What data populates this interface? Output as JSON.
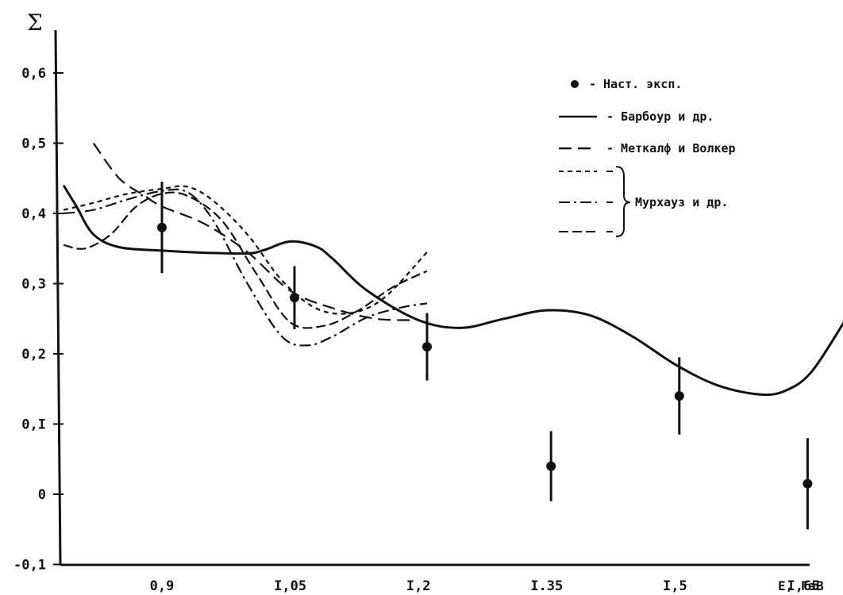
{
  "chart_data": {
    "type": "line",
    "ylabel": "Σ",
    "xlabel": "E, ГэВ",
    "xlim": [
      0.78,
      1.77
    ],
    "ylim": [
      -0.1,
      0.65
    ],
    "x_ticks": [
      0.9,
      1.05,
      1.2,
      1.35,
      1.5,
      1.65
    ],
    "x_tick_labels": [
      "0,9",
      "I,05",
      "I,2",
      "I.35",
      "I,5",
      "I,65"
    ],
    "y_ticks": [
      -0.1,
      0,
      0.1,
      0.2,
      0.3,
      0.4,
      0.5,
      0.6
    ],
    "y_tick_labels": [
      "-0,1",
      "0",
      "0,I",
      "0,2",
      "0,3",
      "0,4",
      "0,5",
      "0,6"
    ],
    "grid": false,
    "legend_position": "top-right",
    "experiment": {
      "name": "Наст. эксп.",
      "points": [
        {
          "x": 0.9,
          "y": 0.38,
          "err": 0.065
        },
        {
          "x": 1.055,
          "y": 0.28,
          "err": 0.045
        },
        {
          "x": 1.21,
          "y": 0.21,
          "err": 0.048
        },
        {
          "x": 1.355,
          "y": 0.04,
          "err": 0.05
        },
        {
          "x": 1.505,
          "y": 0.14,
          "err": 0.055
        },
        {
          "x": 1.655,
          "y": 0.015,
          "err": 0.065
        }
      ]
    },
    "series": [
      {
        "name": "Барбоур и др.",
        "dash": "none",
        "points": [
          [
            0.785,
            0.44
          ],
          [
            0.8,
            0.41
          ],
          [
            0.82,
            0.37
          ],
          [
            0.85,
            0.352
          ],
          [
            0.9,
            0.347
          ],
          [
            0.95,
            0.344
          ],
          [
            1.0,
            0.343
          ],
          [
            1.02,
            0.348
          ],
          [
            1.05,
            0.36
          ],
          [
            1.08,
            0.353
          ],
          [
            1.1,
            0.335
          ],
          [
            1.14,
            0.29
          ],
          [
            1.2,
            0.248
          ],
          [
            1.25,
            0.237
          ],
          [
            1.3,
            0.25
          ],
          [
            1.35,
            0.262
          ],
          [
            1.4,
            0.255
          ],
          [
            1.45,
            0.225
          ],
          [
            1.5,
            0.185
          ],
          [
            1.55,
            0.155
          ],
          [
            1.6,
            0.142
          ],
          [
            1.63,
            0.148
          ],
          [
            1.66,
            0.175
          ],
          [
            1.7,
            0.25
          ]
        ]
      },
      {
        "name": "Меткалф и Волкер",
        "dash": "16,8",
        "points": [
          [
            0.82,
            0.5
          ],
          [
            0.85,
            0.45
          ],
          [
            0.88,
            0.425
          ],
          [
            0.9,
            0.41
          ],
          [
            0.95,
            0.385
          ],
          [
            1.0,
            0.345
          ],
          [
            1.05,
            0.29
          ],
          [
            1.1,
            0.265
          ],
          [
            1.15,
            0.25
          ],
          [
            1.2,
            0.248
          ]
        ]
      },
      {
        "name": "Мурхауз и др. (1)",
        "dash": "6,5",
        "points": [
          [
            0.785,
            0.405
          ],
          [
            0.82,
            0.415
          ],
          [
            0.86,
            0.428
          ],
          [
            0.9,
            0.435
          ],
          [
            0.93,
            0.438
          ],
          [
            0.96,
            0.418
          ],
          [
            1.0,
            0.37
          ],
          [
            1.04,
            0.305
          ],
          [
            1.08,
            0.265
          ],
          [
            1.12,
            0.258
          ],
          [
            1.16,
            0.28
          ],
          [
            1.21,
            0.345
          ]
        ]
      },
      {
        "name": "Мурхауз и др. (2)",
        "dash": "14,5,3,5",
        "points": [
          [
            0.785,
            0.4
          ],
          [
            0.82,
            0.405
          ],
          [
            0.86,
            0.42
          ],
          [
            0.9,
            0.432
          ],
          [
            0.93,
            0.43
          ],
          [
            0.96,
            0.39
          ],
          [
            1.0,
            0.3
          ],
          [
            1.04,
            0.225
          ],
          [
            1.07,
            0.212
          ],
          [
            1.1,
            0.225
          ],
          [
            1.14,
            0.252
          ],
          [
            1.18,
            0.266
          ],
          [
            1.21,
            0.272
          ]
        ]
      },
      {
        "name": "Мурхауз и др. (3)",
        "dash": "12,5",
        "points": [
          [
            0.785,
            0.355
          ],
          [
            0.81,
            0.35
          ],
          [
            0.84,
            0.37
          ],
          [
            0.87,
            0.41
          ],
          [
            0.9,
            0.428
          ],
          [
            0.93,
            0.425
          ],
          [
            0.97,
            0.39
          ],
          [
            1.01,
            0.315
          ],
          [
            1.05,
            0.245
          ],
          [
            1.09,
            0.24
          ],
          [
            1.13,
            0.262
          ],
          [
            1.17,
            0.295
          ],
          [
            1.21,
            0.318
          ]
        ]
      }
    ]
  },
  "legend": {
    "bullet_label": "- Наст. эксп.",
    "solid_label": "- Барбоур и др.",
    "long_dash_label": "- Меткалф и Волкер",
    "group_label": "Мурхауз и др."
  }
}
